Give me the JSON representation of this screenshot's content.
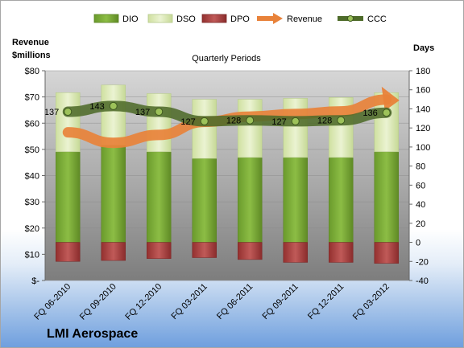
{
  "chart_data": {
    "type": "bar",
    "title": "Quarterly Periods",
    "company": "LMI Aerospace",
    "left_axis": {
      "label_line1": "Revenue",
      "label_line2": "$millions",
      "range": [
        0,
        80
      ],
      "ticks": [
        "$-",
        "$10",
        "$20",
        "$30",
        "$40",
        "$50",
        "$60",
        "$70",
        "$80"
      ]
    },
    "right_axis": {
      "label": "Days",
      "range": [
        -40,
        180
      ],
      "ticks": [
        -40,
        -20,
        0,
        20,
        40,
        60,
        80,
        100,
        120,
        140,
        160,
        180
      ]
    },
    "categories": [
      "FQ 06-2010",
      "FQ 09-2010",
      "FQ 12-2010",
      "FQ 03-2011",
      "FQ 06-2011",
      "FQ 09-2011",
      "FQ 12-2011",
      "FQ 03-2012"
    ],
    "series": [
      {
        "name": "DIO",
        "axis": "right",
        "kind": "stacked-bar",
        "color": "#77a033",
        "values": [
          95,
          102,
          95,
          88,
          89,
          89,
          89,
          95
        ]
      },
      {
        "name": "DSO",
        "axis": "right",
        "kind": "stacked-bar",
        "color": "#d8e8b0",
        "values": [
          62,
          63,
          61,
          62,
          61,
          62,
          63,
          62
        ]
      },
      {
        "name": "DPO",
        "axis": "right",
        "kind": "negative-bar",
        "color": "#a5373b",
        "values": [
          -20,
          -19,
          -17,
          -16,
          -18,
          -21,
          -21,
          -22
        ]
      },
      {
        "name": "Revenue",
        "axis": "left",
        "kind": "arrow-line",
        "color": "#e8823a",
        "values": [
          56.5,
          52.5,
          55.5,
          60.5,
          62.5,
          63.5,
          64.5,
          69.0
        ]
      },
      {
        "name": "CCC",
        "axis": "right",
        "kind": "line",
        "color": "#4e6b2a",
        "values": [
          137,
          143,
          137,
          127,
          128,
          127,
          128,
          136
        ]
      }
    ],
    "data_labels": [
      "137",
      "143",
      "137",
      "127",
      "128",
      "127",
      "128",
      "136"
    ],
    "legend_position": "top"
  }
}
